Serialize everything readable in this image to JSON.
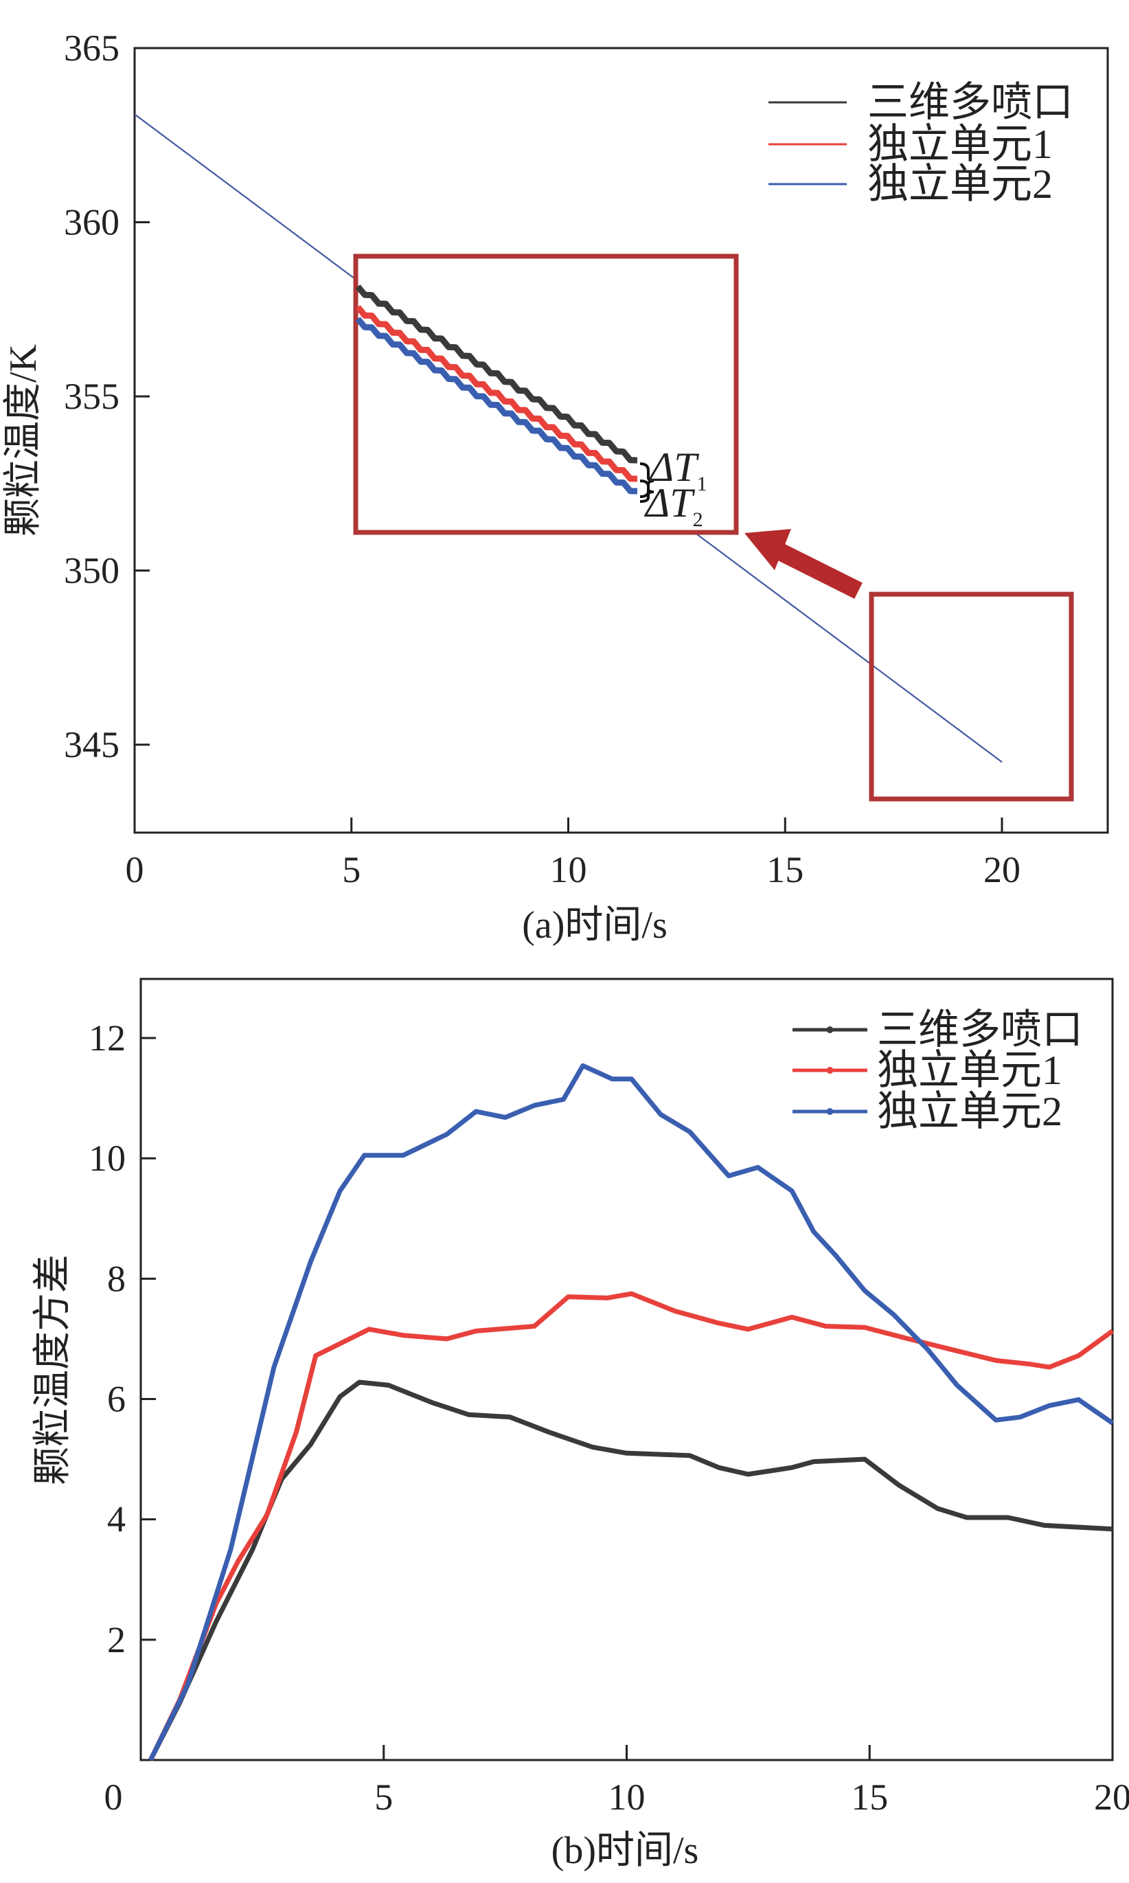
{
  "colors": {
    "black": "#3a3a3a",
    "red": "#e8413c",
    "blue": "#3a5fb0",
    "highlight": "#b03535"
  },
  "chart_data": [
    {
      "type": "line",
      "title": "",
      "xlabel": "(a)时间/s",
      "ylabel": "颗粒温度/K",
      "xlim": [
        0,
        22.5
      ],
      "ylim": [
        342.5,
        365
      ],
      "xticks": [
        0,
        5,
        10,
        15,
        20
      ],
      "yticks": [
        345,
        350,
        355,
        360,
        365
      ],
      "legend_position": "top-right",
      "series": [
        {
          "name": "三维多喷口",
          "color_key": "black",
          "x": [
            0,
            20
          ],
          "y": [
            363.1,
            344.5
          ]
        },
        {
          "name": "独立单元1",
          "color_key": "red",
          "x": [
            0,
            20
          ],
          "y": [
            363.1,
            344.5
          ]
        },
        {
          "name": "独立单元2",
          "color_key": "blue",
          "x": [
            0,
            20
          ],
          "y": [
            363.1,
            344.5
          ]
        }
      ],
      "annotations": {
        "delta1": "ΔT",
        "delta1_sub": "1",
        "delta2": "ΔT",
        "delta2_sub": "2"
      }
    },
    {
      "type": "line",
      "title": "",
      "xlabel": "(b)时间/s",
      "ylabel": "颗粒温度方差",
      "xlim": [
        0,
        20
      ],
      "ylim": [
        0,
        13
      ],
      "xticks": [
        0,
        5,
        10,
        15,
        20
      ],
      "yticks": [
        2,
        4,
        6,
        8,
        10,
        12
      ],
      "legend_position": "top-right",
      "series": [
        {
          "name": "三维多喷口",
          "color_key": "black",
          "x": [
            0.2,
            0.8,
            1.55,
            2.3,
            2.9,
            3.5,
            4.1,
            4.5,
            5.1,
            6,
            6.75,
            7.6,
            8.4,
            9.3,
            10,
            11.3,
            11.9,
            12.5,
            13.4,
            13.85,
            14.9,
            15.6,
            16.4,
            17,
            17.85,
            18.6,
            20
          ],
          "y": [
            0,
            0.95,
            2.3,
            3.5,
            4.67,
            5.25,
            6.04,
            6.28,
            6.23,
            5.94,
            5.74,
            5.7,
            5.45,
            5.2,
            5.1,
            5.06,
            4.86,
            4.75,
            4.86,
            4.96,
            5.0,
            4.57,
            4.18,
            4.03,
            4.03,
            3.9,
            3.84
          ]
        },
        {
          "name": "独立单元1",
          "color_key": "red",
          "x": [
            0.2,
            0.8,
            1.55,
            2,
            2.6,
            3.2,
            3.6,
            4.1,
            4.7,
            5.4,
            6.3,
            6.9,
            8.1,
            8.8,
            9.6,
            10.1,
            11,
            11.9,
            12.5,
            13.4,
            14.1,
            14.9,
            15.8,
            16.7,
            17.6,
            18.3,
            18.7,
            19.3,
            20
          ],
          "y": [
            0,
            1.0,
            2.6,
            3.3,
            4.08,
            5.45,
            6.72,
            6.92,
            7.16,
            7.06,
            7.0,
            7.13,
            7.21,
            7.7,
            7.68,
            7.75,
            7.46,
            7.26,
            7.16,
            7.36,
            7.21,
            7.19,
            7.0,
            6.82,
            6.64,
            6.58,
            6.53,
            6.72,
            7.13
          ]
        },
        {
          "name": "独立单元2",
          "color_key": "blue",
          "x": [
            0.2,
            0.96,
            1.85,
            2.74,
            3.5,
            4.1,
            4.6,
            5.4,
            6.3,
            6.9,
            7.5,
            8.1,
            8.7,
            9.1,
            9.7,
            10.1,
            10.7,
            11.3,
            12.1,
            12.7,
            13.4,
            13.85,
            14.3,
            14.9,
            15.5,
            16.2,
            16.8,
            17.6,
            18.1,
            18.7,
            19.3,
            20
          ],
          "y": [
            0,
            1.24,
            3.5,
            6.53,
            8.29,
            9.46,
            10.05,
            10.05,
            10.4,
            10.78,
            10.68,
            10.88,
            10.98,
            11.54,
            11.32,
            11.32,
            10.73,
            10.44,
            9.71,
            9.85,
            9.46,
            8.78,
            8.39,
            7.8,
            7.4,
            6.82,
            6.23,
            5.65,
            5.7,
            5.89,
            5.99,
            5.6
          ]
        }
      ]
    }
  ]
}
